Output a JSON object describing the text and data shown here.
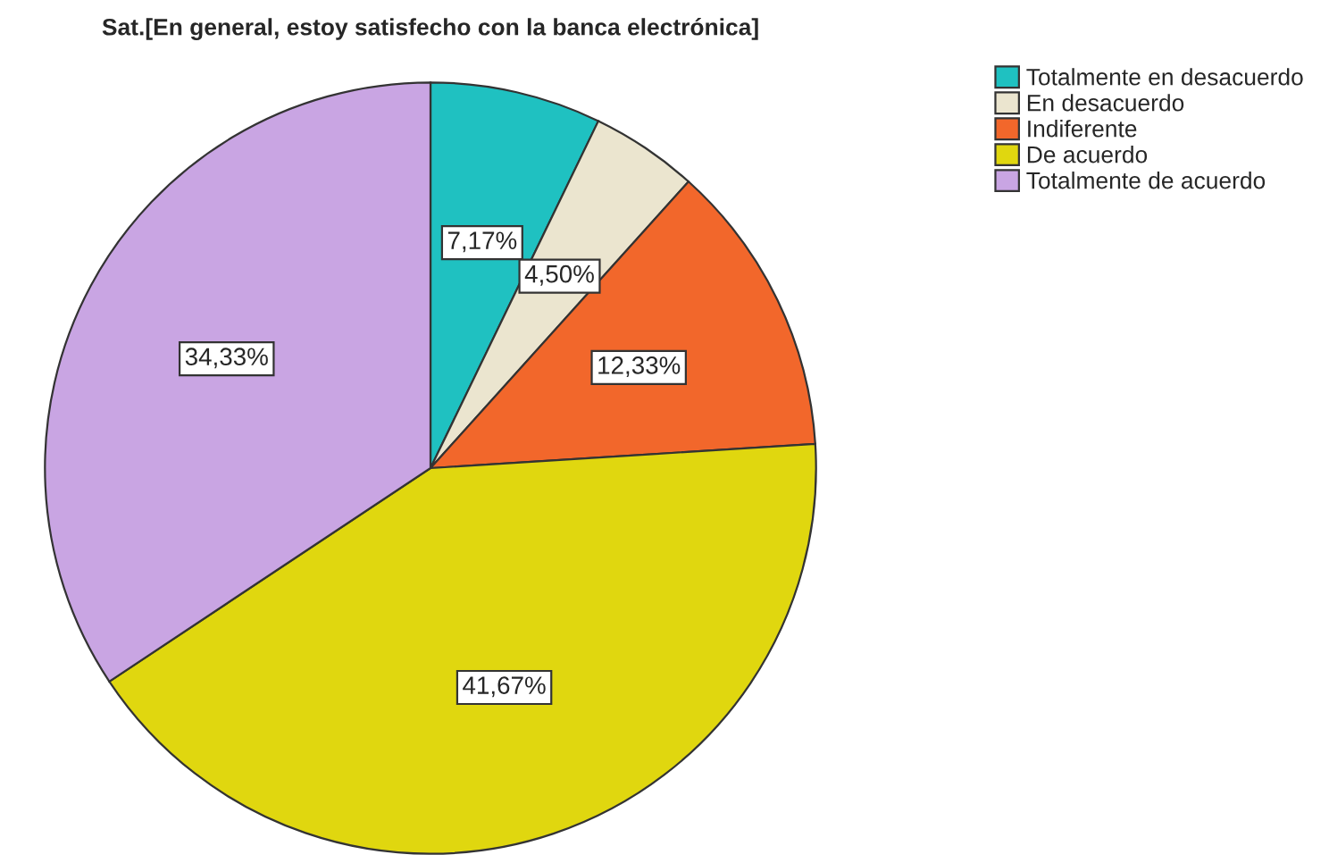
{
  "chart_data": {
    "type": "pie",
    "title": "Sat.[En general, estoy satisfecho con la banca electrónica]",
    "categories": [
      "Totalmente en desacuerdo",
      "En desacuerdo",
      "Indiferente",
      "De acuerdo",
      "Totalmente de acuerdo"
    ],
    "values": [
      7.17,
      4.5,
      12.33,
      41.67,
      34.33
    ],
    "value_labels": [
      "7,17%",
      "4,50%",
      "12,33%",
      "41,67%",
      "34,33%"
    ],
    "colors": [
      "#1fc1c1",
      "#ebe5cf",
      "#f2672b",
      "#e0d70f",
      "#c9a5e3"
    ],
    "legend": "top right"
  }
}
